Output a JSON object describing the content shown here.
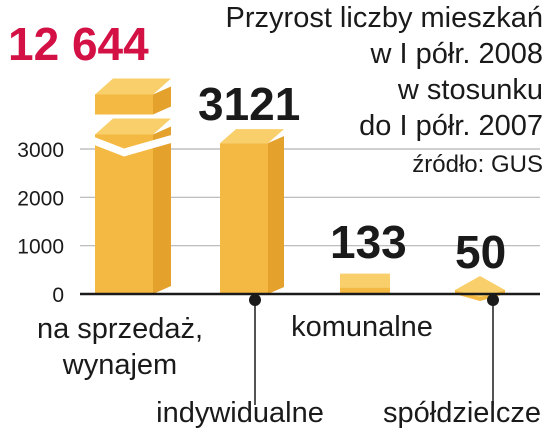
{
  "colors": {
    "bar_front": "#f4b942",
    "bar_side": "#e4a12c",
    "bar_top": "#f8cf6a",
    "highlight_value": "#d31145",
    "text": "#1a1a1a",
    "grid": "#b5b5b5"
  },
  "chart_data": {
    "type": "bar",
    "title_lines": [
      "Przyrost liczby mieszkań",
      "w I półr. 2008",
      "w stosunku",
      "do I półr. 2007"
    ],
    "source": "źródło: GUS",
    "categories": [
      "na sprzedaż, wynajem",
      "indywidualne",
      "komunalne",
      "spółdzielcze"
    ],
    "category_label_lines": [
      [
        "na sprzedaż,",
        "wynajem"
      ],
      [
        "indywidualne"
      ],
      [
        "komunalne"
      ],
      [
        "spółdzielcze"
      ]
    ],
    "values": [
      12644,
      3121,
      133,
      50
    ],
    "value_labels": [
      "12 644",
      "3121",
      "133",
      "50"
    ],
    "highlight_index": 0,
    "axis_break_index": 0,
    "yticks": [
      0,
      1000,
      2000,
      3000
    ],
    "ytick_labels": [
      "0",
      "1000",
      "2000",
      "3000"
    ],
    "ylim": [
      0,
      3500
    ],
    "grid": true,
    "xlabel": "",
    "ylabel": ""
  }
}
